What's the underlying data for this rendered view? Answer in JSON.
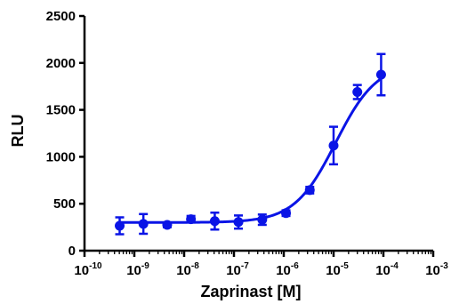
{
  "chart_data": {
    "type": "scatter",
    "xlabel": "Zaprinast [M]",
    "ylabel": "RLU",
    "x_scale": "log",
    "xlim": [
      1e-10,
      0.001
    ],
    "ylim": [
      0,
      2500
    ],
    "x_ticks": [
      {
        "base": "10",
        "exp": "-10",
        "value": 1e-10
      },
      {
        "base": "10",
        "exp": "-9",
        "value": 1e-09
      },
      {
        "base": "10",
        "exp": "-8",
        "value": 1e-08
      },
      {
        "base": "10",
        "exp": "-7",
        "value": 1e-07
      },
      {
        "base": "10",
        "exp": "-6",
        "value": 1e-06
      },
      {
        "base": "10",
        "exp": "-5",
        "value": 1e-05
      },
      {
        "base": "10",
        "exp": "-4",
        "value": 0.0001
      },
      {
        "base": "10",
        "exp": "-3",
        "value": 0.001
      }
    ],
    "y_ticks": [
      {
        "label": "0",
        "value": 0
      },
      {
        "label": "500",
        "value": 500
      },
      {
        "label": "1000",
        "value": 1000
      },
      {
        "label": "1500",
        "value": 1500
      },
      {
        "label": "2000",
        "value": 2000
      },
      {
        "label": "2500",
        "value": 2500
      }
    ],
    "grid": false,
    "color": "#0a14e6",
    "series": [
      {
        "x": [
          5.08e-10,
          1.52e-09,
          4.57e-09,
          1.37e-08,
          4.12e-08,
          1.23e-07,
          3.7e-07,
          1.11e-06,
          3.33e-06,
          1e-05,
          3e-05,
          9e-05
        ],
        "y": [
          265,
          285,
          275,
          335,
          315,
          305,
          330,
          400,
          645,
          1120,
          1690,
          1875
        ],
        "error": [
          90,
          105,
          25,
          35,
          90,
          70,
          55,
          30,
          35,
          200,
          75,
          220
        ]
      }
    ],
    "fit": {
      "type": "sigmoidal dose-response",
      "bottom": 300,
      "top": 2000,
      "ec50": 1.1e-05,
      "hill": 1.05
    }
  }
}
